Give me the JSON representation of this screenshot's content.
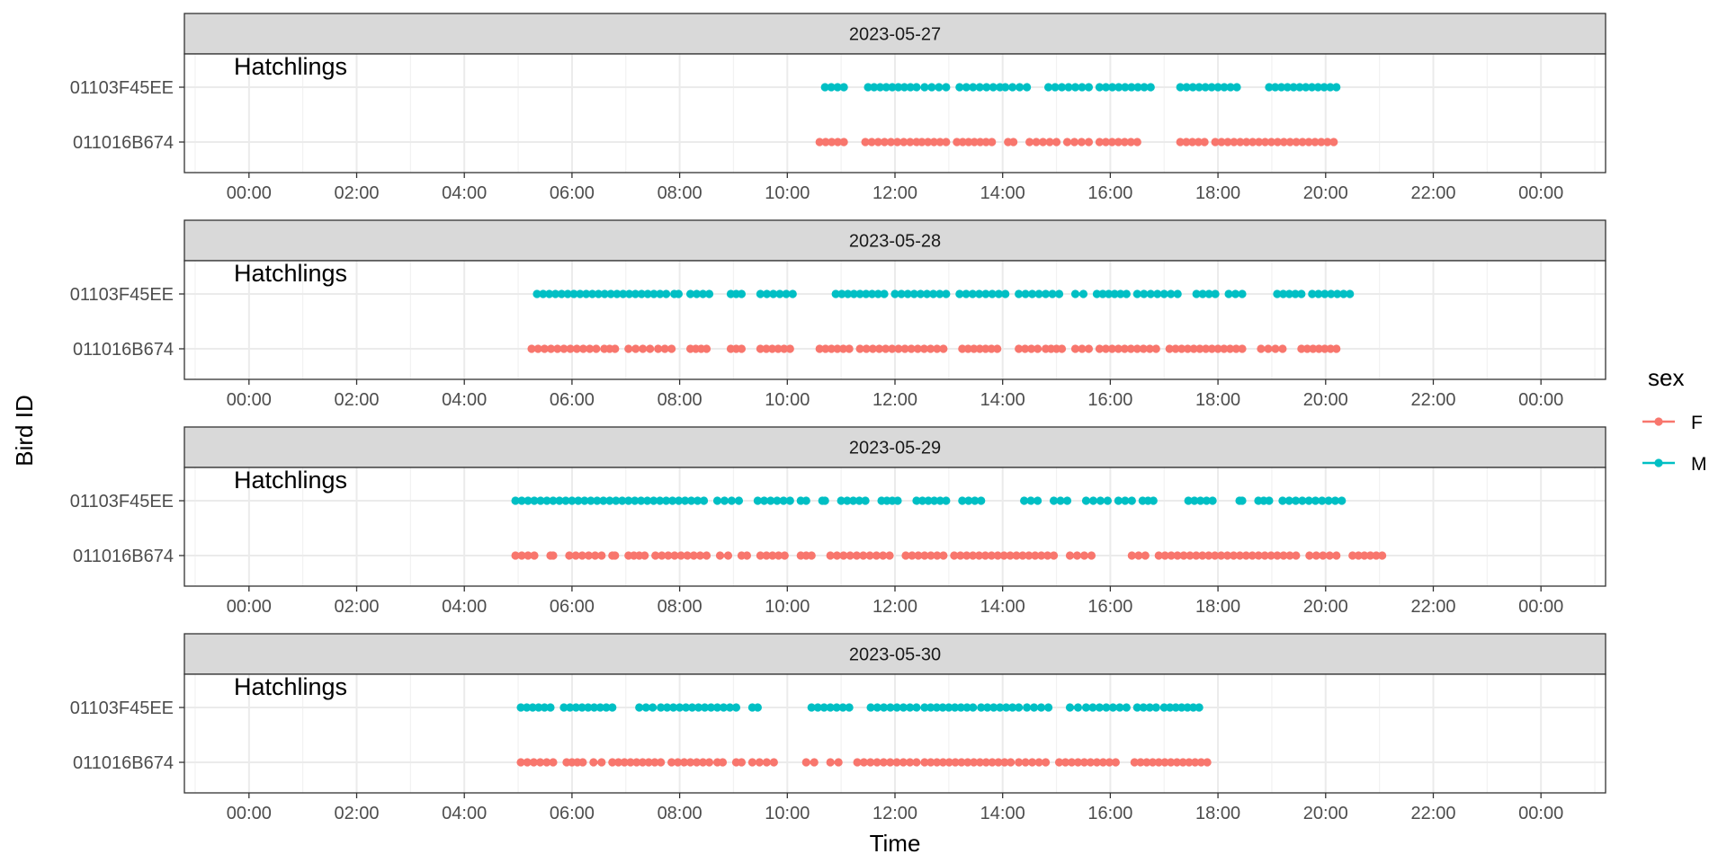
{
  "chart_data": {
    "type": "line",
    "xlabel": "Time",
    "ylabel": "Bird ID",
    "x_range_hours": [
      -1.2,
      25.2
    ],
    "x_ticks": [
      {
        "hour": 0,
        "label": "00:00"
      },
      {
        "hour": 2,
        "label": "02:00"
      },
      {
        "hour": 4,
        "label": "04:00"
      },
      {
        "hour": 6,
        "label": "06:00"
      },
      {
        "hour": 8,
        "label": "08:00"
      },
      {
        "hour": 10,
        "label": "10:00"
      },
      {
        "hour": 12,
        "label": "12:00"
      },
      {
        "hour": 14,
        "label": "14:00"
      },
      {
        "hour": 16,
        "label": "16:00"
      },
      {
        "hour": 18,
        "label": "18:00"
      },
      {
        "hour": 20,
        "label": "20:00"
      },
      {
        "hour": 22,
        "label": "22:00"
      },
      {
        "hour": 24,
        "label": "00:00"
      }
    ],
    "y_categories": [
      "01103F45EE",
      "011016B674"
    ],
    "legend": {
      "title": "sex",
      "placement": "right",
      "entries": [
        {
          "label": "F",
          "color": "#F8766D"
        },
        {
          "label": "M",
          "color": "#00BFC4"
        }
      ]
    },
    "grid": true,
    "panels": [
      {
        "strip": "2023-05-27",
        "annotation": "Hatchlings",
        "series": [
          {
            "bird": "01103F45EE",
            "sex": "M",
            "intervals": [
              [
                10.7,
                11.05
              ],
              [
                11.5,
                12.4
              ],
              [
                12.55,
                12.95
              ],
              [
                13.2,
                13.95
              ],
              [
                14.05,
                14.45
              ],
              [
                14.85,
                15.6
              ],
              [
                15.8,
                16.75
              ],
              [
                17.3,
                18.35
              ],
              [
                18.95,
                20.2
              ]
            ]
          },
          {
            "bird": "011016B674",
            "sex": "F",
            "intervals": [
              [
                10.6,
                11.05
              ],
              [
                11.45,
                12.4
              ],
              [
                12.5,
                12.95
              ],
              [
                13.15,
                13.8
              ],
              [
                14.1,
                14.2
              ],
              [
                14.5,
                15.0
              ],
              [
                15.2,
                15.6
              ],
              [
                15.8,
                16.5
              ],
              [
                17.3,
                17.75
              ],
              [
                17.95,
                20.15
              ]
            ]
          }
        ]
      },
      {
        "strip": "2023-05-28",
        "annotation": "Hatchlings",
        "series": [
          {
            "bird": "01103F45EE",
            "sex": "M",
            "intervals": [
              [
                5.35,
                7.75
              ],
              [
                7.9,
                7.98
              ],
              [
                8.2,
                8.55
              ],
              [
                8.95,
                9.15
              ],
              [
                9.5,
                10.1
              ],
              [
                10.9,
                11.8
              ],
              [
                12.0,
                12.95
              ],
              [
                13.2,
                14.05
              ],
              [
                14.3,
                15.05
              ],
              [
                15.35,
                15.5
              ],
              [
                15.75,
                16.3
              ],
              [
                16.5,
                17.25
              ],
              [
                17.6,
                17.95
              ],
              [
                18.2,
                18.45
              ],
              [
                19.1,
                19.55
              ],
              [
                19.75,
                20.45
              ]
            ]
          },
          {
            "bird": "011016B674",
            "sex": "F",
            "intervals": [
              [
                5.25,
                6.45
              ],
              [
                6.6,
                6.8
              ],
              [
                7.05,
                7.45
              ],
              [
                7.6,
                7.85
              ],
              [
                8.2,
                8.5
              ],
              [
                8.95,
                9.15
              ],
              [
                9.5,
                10.05
              ],
              [
                10.6,
                11.15
              ],
              [
                11.35,
                12.9
              ],
              [
                13.25,
                13.9
              ],
              [
                14.3,
                14.65
              ],
              [
                14.8,
                15.1
              ],
              [
                15.35,
                15.6
              ],
              [
                15.8,
                16.85
              ],
              [
                17.1,
                18.45
              ],
              [
                18.8,
                19.2
              ],
              [
                19.55,
                20.2
              ]
            ]
          }
        ]
      },
      {
        "strip": "2023-05-29",
        "annotation": "Hatchlings",
        "series": [
          {
            "bird": "01103F45EE",
            "sex": "M",
            "intervals": [
              [
                4.95,
                8.45
              ],
              [
                8.7,
                9.1
              ],
              [
                9.45,
                10.05
              ],
              [
                10.25,
                10.35
              ],
              [
                10.65,
                10.7
              ],
              [
                11.0,
                11.45
              ],
              [
                11.75,
                12.05
              ],
              [
                12.4,
                12.95
              ],
              [
                13.25,
                13.6
              ],
              [
                14.4,
                14.65
              ],
              [
                14.95,
                15.2
              ],
              [
                15.55,
                15.95
              ],
              [
                16.15,
                16.4
              ],
              [
                16.6,
                16.8
              ],
              [
                17.45,
                17.9
              ],
              [
                18.4,
                18.45
              ],
              [
                18.75,
                18.95
              ],
              [
                19.2,
                20.3
              ]
            ]
          },
          {
            "bird": "011016B674",
            "sex": "F",
            "intervals": [
              [
                4.95,
                5.3
              ],
              [
                5.6,
                5.65
              ],
              [
                5.95,
                6.55
              ],
              [
                6.75,
                6.8
              ],
              [
                7.05,
                7.35
              ],
              [
                7.55,
                8.5
              ],
              [
                8.75,
                8.9
              ],
              [
                9.15,
                9.25
              ],
              [
                9.5,
                9.95
              ],
              [
                10.25,
                10.45
              ],
              [
                10.8,
                11.9
              ],
              [
                12.2,
                12.9
              ],
              [
                13.1,
                14.95
              ],
              [
                15.25,
                15.65
              ],
              [
                16.4,
                16.65
              ],
              [
                16.9,
                19.45
              ],
              [
                19.7,
                20.2
              ],
              [
                20.5,
                21.05
              ]
            ]
          }
        ]
      },
      {
        "strip": "2023-05-30",
        "annotation": "Hatchlings",
        "series": [
          {
            "bird": "01103F45EE",
            "sex": "M",
            "intervals": [
              [
                5.05,
                5.6
              ],
              [
                5.85,
                6.75
              ],
              [
                7.25,
                7.5
              ],
              [
                7.65,
                9.05
              ],
              [
                9.35,
                9.45
              ],
              [
                10.45,
                11.15
              ],
              [
                11.55,
                12.4
              ],
              [
                12.55,
                13.45
              ],
              [
                13.6,
                14.3
              ],
              [
                14.45,
                14.85
              ],
              [
                15.25,
                15.4
              ],
              [
                15.55,
                16.3
              ],
              [
                16.5,
                16.85
              ],
              [
                17.0,
                17.65
              ]
            ]
          },
          {
            "bird": "011016B674",
            "sex": "F",
            "intervals": [
              [
                5.05,
                5.65
              ],
              [
                5.9,
                6.2
              ],
              [
                6.4,
                6.55
              ],
              [
                6.75,
                7.65
              ],
              [
                7.85,
                8.55
              ],
              [
                8.7,
                8.8
              ],
              [
                9.05,
                9.15
              ],
              [
                9.35,
                9.75
              ],
              [
                10.35,
                10.5
              ],
              [
                10.8,
                10.95
              ],
              [
                11.3,
                12.4
              ],
              [
                12.55,
                14.15
              ],
              [
                14.3,
                14.8
              ],
              [
                15.05,
                16.1
              ],
              [
                16.45,
                17.8
              ]
            ]
          }
        ]
      }
    ]
  }
}
